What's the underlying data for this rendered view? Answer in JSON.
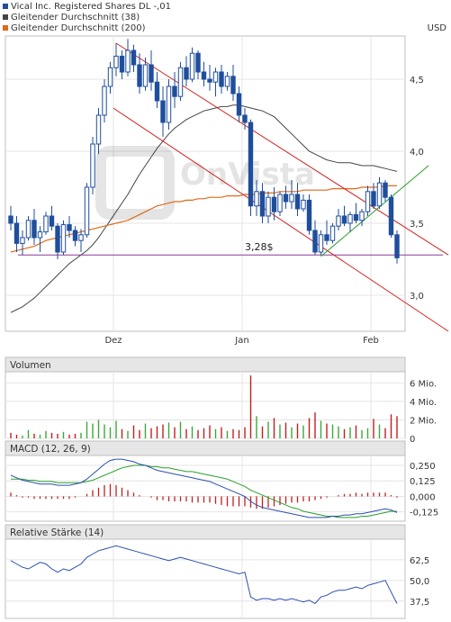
{
  "chart_data": [
    {
      "panel": "price",
      "type": "candlestick",
      "legend": [
        {
          "label": "Vical Inc. Registered Shares DL -,01",
          "color": "#1f4e9c"
        },
        {
          "label": "Gleitender Durchschnitt (38)",
          "color": "#444444"
        },
        {
          "label": "Gleitender Durchschnitt (200)",
          "color": "#e06a1a"
        }
      ],
      "currency_label": "USD",
      "x_ticks": [
        {
          "label": "Dez",
          "i": 18
        },
        {
          "label": "Jan",
          "i": 40
        },
        {
          "label": "Feb",
          "i": 62
        }
      ],
      "y_ticks": [
        "4,5",
        "4,0",
        "3,5",
        "3,0"
      ],
      "ylim": [
        2.75,
        4.8
      ],
      "horizontal_level": {
        "value": 3.28,
        "label": "3,28$"
      },
      "candles": [
        [
          3.55,
          3.62,
          3.45,
          3.5
        ],
        [
          3.5,
          3.55,
          3.3,
          3.36
        ],
        [
          3.36,
          3.45,
          3.28,
          3.4
        ],
        [
          3.4,
          3.55,
          3.38,
          3.52
        ],
        [
          3.52,
          3.6,
          3.35,
          3.4
        ],
        [
          3.4,
          3.48,
          3.3,
          3.44
        ],
        [
          3.44,
          3.58,
          3.42,
          3.55
        ],
        [
          3.55,
          3.62,
          3.45,
          3.48
        ],
        [
          3.48,
          3.5,
          3.25,
          3.3
        ],
        [
          3.3,
          3.52,
          3.28,
          3.49
        ],
        [
          3.49,
          3.55,
          3.4,
          3.45
        ],
        [
          3.45,
          3.48,
          3.34,
          3.38
        ],
        [
          3.38,
          3.46,
          3.3,
          3.42
        ],
        [
          3.42,
          3.78,
          3.4,
          3.75
        ],
        [
          3.75,
          4.1,
          3.7,
          4.05
        ],
        [
          4.05,
          4.3,
          3.98,
          4.25
        ],
        [
          4.25,
          4.5,
          4.2,
          4.45
        ],
        [
          4.45,
          4.62,
          4.4,
          4.58
        ],
        [
          4.58,
          4.75,
          4.52,
          4.66
        ],
        [
          4.66,
          4.7,
          4.5,
          4.55
        ],
        [
          4.55,
          4.78,
          4.52,
          4.7
        ],
        [
          4.7,
          4.74,
          4.55,
          4.6
        ],
        [
          4.6,
          4.68,
          4.4,
          4.45
        ],
        [
          4.45,
          4.65,
          4.42,
          4.6
        ],
        [
          4.6,
          4.7,
          4.42,
          4.48
        ],
        [
          4.48,
          4.55,
          4.3,
          4.35
        ],
        [
          4.35,
          4.45,
          4.1,
          4.2
        ],
        [
          4.2,
          4.5,
          4.15,
          4.45
        ],
        [
          4.45,
          4.55,
          4.3,
          4.38
        ],
        [
          4.38,
          4.62,
          4.35,
          4.58
        ],
        [
          4.58,
          4.66,
          4.45,
          4.5
        ],
        [
          4.5,
          4.72,
          4.48,
          4.68
        ],
        [
          4.68,
          4.7,
          4.5,
          4.55
        ],
        [
          4.55,
          4.62,
          4.45,
          4.5
        ],
        [
          4.5,
          4.6,
          4.42,
          4.48
        ],
        [
          4.48,
          4.58,
          4.38,
          4.55
        ],
        [
          4.55,
          4.6,
          4.4,
          4.45
        ],
        [
          4.45,
          4.55,
          4.42,
          4.52
        ],
        [
          4.52,
          4.6,
          4.35,
          4.4
        ],
        [
          4.4,
          4.45,
          4.2,
          4.25
        ],
        [
          4.25,
          4.3,
          4.15,
          4.2
        ],
        [
          4.2,
          4.22,
          3.55,
          3.62
        ],
        [
          3.62,
          3.8,
          3.55,
          3.72
        ],
        [
          3.72,
          3.78,
          3.5,
          3.55
        ],
        [
          3.55,
          3.72,
          3.5,
          3.68
        ],
        [
          3.68,
          3.75,
          3.52,
          3.58
        ],
        [
          3.58,
          3.72,
          3.55,
          3.7
        ],
        [
          3.7,
          3.76,
          3.6,
          3.65
        ],
        [
          3.65,
          3.8,
          3.6,
          3.7
        ],
        [
          3.7,
          3.78,
          3.55,
          3.6
        ],
        [
          3.6,
          3.7,
          3.58,
          3.66
        ],
        [
          3.66,
          3.7,
          3.42,
          3.45
        ],
        [
          3.45,
          3.52,
          3.28,
          3.3
        ],
        [
          3.3,
          3.45,
          3.28,
          3.42
        ],
        [
          3.42,
          3.52,
          3.35,
          3.38
        ],
        [
          3.38,
          3.5,
          3.36,
          3.48
        ],
        [
          3.48,
          3.6,
          3.45,
          3.55
        ],
        [
          3.55,
          3.62,
          3.48,
          3.5
        ],
        [
          3.5,
          3.58,
          3.44,
          3.56
        ],
        [
          3.56,
          3.64,
          3.5,
          3.52
        ],
        [
          3.52,
          3.6,
          3.48,
          3.58
        ],
        [
          3.58,
          3.76,
          3.55,
          3.72
        ],
        [
          3.72,
          3.78,
          3.6,
          3.62
        ],
        [
          3.62,
          3.82,
          3.6,
          3.78
        ],
        [
          3.78,
          3.8,
          3.65,
          3.68
        ],
        [
          3.68,
          3.7,
          3.4,
          3.42
        ],
        [
          3.42,
          3.45,
          3.22,
          3.26
        ]
      ],
      "ma38": [
        2.88,
        2.9,
        2.92,
        2.95,
        2.98,
        3.02,
        3.06,
        3.1,
        3.14,
        3.18,
        3.22,
        3.25,
        3.28,
        3.31,
        3.35,
        3.4,
        3.46,
        3.52,
        3.58,
        3.64,
        3.7,
        3.77,
        3.84,
        3.9,
        3.96,
        4.02,
        4.07,
        4.12,
        4.16,
        4.19,
        4.22,
        4.24,
        4.26,
        4.28,
        4.29,
        4.3,
        4.31,
        4.31,
        4.32,
        4.32,
        4.31,
        4.3,
        4.29,
        4.28,
        4.26,
        4.24,
        4.2,
        4.16,
        4.12,
        4.08,
        4.04,
        4.0,
        3.98,
        3.96,
        3.94,
        3.93,
        3.92,
        3.92,
        3.92,
        3.91,
        3.9,
        3.9,
        3.9,
        3.89,
        3.88,
        3.87,
        3.86
      ],
      "ma200": [
        3.3,
        3.31,
        3.32,
        3.33,
        3.34,
        3.36,
        3.38,
        3.39,
        3.4,
        3.41,
        3.42,
        3.43,
        3.44,
        3.45,
        3.46,
        3.47,
        3.48,
        3.49,
        3.5,
        3.51,
        3.52,
        3.54,
        3.56,
        3.58,
        3.6,
        3.62,
        3.63,
        3.64,
        3.65,
        3.65,
        3.66,
        3.66,
        3.67,
        3.67,
        3.68,
        3.68,
        3.68,
        3.69,
        3.69,
        3.69,
        3.7,
        3.7,
        3.7,
        3.71,
        3.71,
        3.71,
        3.72,
        3.72,
        3.72,
        3.72,
        3.73,
        3.73,
        3.73,
        3.73,
        3.73,
        3.74,
        3.74,
        3.74,
        3.74,
        3.74,
        3.75,
        3.75,
        3.75,
        3.75,
        3.76,
        3.76,
        3.76
      ]
    },
    {
      "panel": "volume",
      "type": "bar",
      "title": "Volumen",
      "y_ticks": [
        "6 Mio.",
        "4 Mio.",
        "2 Mio.",
        "0"
      ],
      "ylim": [
        0,
        7.2
      ],
      "values": [
        0.6,
        0.4,
        0.3,
        0.9,
        0.5,
        0.4,
        0.8,
        0.6,
        0.5,
        0.7,
        0.4,
        0.5,
        0.6,
        1.8,
        1.6,
        2.0,
        1.5,
        1.2,
        1.9,
        1.0,
        0.8,
        1.4,
        0.9,
        1.6,
        1.1,
        1.3,
        1.5,
        1.7,
        1.2,
        1.8,
        1.0,
        1.3,
        0.9,
        1.1,
        1.4,
        1.0,
        1.2,
        0.8,
        1.0,
        0.9,
        1.2,
        6.8,
        2.4,
        1.3,
        1.8,
        2.2,
        1.5,
        1.7,
        1.2,
        1.6,
        1.4,
        2.2,
        2.8,
        1.9,
        1.6,
        1.5,
        1.3,
        1.0,
        1.2,
        1.4,
        0.9,
        1.1,
        2.1,
        1.5,
        1.1,
        2.6,
        2.4
      ]
    },
    {
      "panel": "macd",
      "type": "line",
      "title": "MACD (12, 26, 9)",
      "y_ticks": [
        "0,250",
        "0,125",
        "0,000",
        "-0,125"
      ],
      "ylim": [
        -0.2,
        0.33
      ],
      "macd": [
        0.17,
        0.15,
        0.13,
        0.12,
        0.11,
        0.1,
        0.1,
        0.1,
        0.09,
        0.09,
        0.09,
        0.1,
        0.11,
        0.14,
        0.18,
        0.22,
        0.26,
        0.29,
        0.3,
        0.3,
        0.29,
        0.28,
        0.26,
        0.25,
        0.23,
        0.21,
        0.2,
        0.19,
        0.18,
        0.17,
        0.16,
        0.15,
        0.14,
        0.13,
        0.12,
        0.1,
        0.08,
        0.06,
        0.04,
        0.02,
        0.0,
        -0.04,
        -0.07,
        -0.09,
        -0.1,
        -0.11,
        -0.12,
        -0.13,
        -0.14,
        -0.15,
        -0.16,
        -0.17,
        -0.17,
        -0.17,
        -0.17,
        -0.16,
        -0.16,
        -0.15,
        -0.15,
        -0.14,
        -0.14,
        -0.13,
        -0.12,
        -0.11,
        -0.1,
        -0.11,
        -0.13
      ],
      "signal": [
        0.14,
        0.14,
        0.14,
        0.13,
        0.13,
        0.12,
        0.12,
        0.12,
        0.11,
        0.11,
        0.11,
        0.11,
        0.11,
        0.12,
        0.13,
        0.15,
        0.17,
        0.19,
        0.21,
        0.23,
        0.24,
        0.25,
        0.25,
        0.25,
        0.24,
        0.24,
        0.23,
        0.23,
        0.22,
        0.21,
        0.2,
        0.2,
        0.19,
        0.18,
        0.17,
        0.16,
        0.15,
        0.14,
        0.12,
        0.1,
        0.08,
        0.05,
        0.03,
        0.01,
        -0.01,
        -0.03,
        -0.05,
        -0.07,
        -0.09,
        -0.1,
        -0.12,
        -0.13,
        -0.14,
        -0.15,
        -0.16,
        -0.16,
        -0.17,
        -0.17,
        -0.17,
        -0.17,
        -0.16,
        -0.16,
        -0.15,
        -0.14,
        -0.13,
        -0.12,
        -0.12
      ],
      "histogram": [
        0.03,
        0.01,
        -0.01,
        -0.01,
        -0.02,
        -0.02,
        -0.02,
        -0.02,
        -0.02,
        -0.02,
        -0.02,
        -0.01,
        0.0,
        0.02,
        0.05,
        0.07,
        0.09,
        0.1,
        0.09,
        0.07,
        0.05,
        0.03,
        0.01,
        0.0,
        -0.01,
        -0.03,
        -0.03,
        -0.04,
        -0.04,
        -0.04,
        -0.04,
        -0.05,
        -0.05,
        -0.05,
        -0.05,
        -0.06,
        -0.07,
        -0.08,
        -0.08,
        -0.08,
        -0.08,
        -0.09,
        -0.1,
        -0.1,
        -0.09,
        -0.08,
        -0.07,
        -0.06,
        -0.05,
        -0.05,
        -0.04,
        -0.04,
        -0.03,
        -0.02,
        -0.01,
        0.0,
        0.01,
        0.02,
        0.02,
        0.03,
        0.02,
        0.03,
        0.03,
        0.03,
        0.03,
        0.01,
        -0.01
      ]
    },
    {
      "panel": "rsi",
      "type": "line",
      "title": "Relative Stärke (14)",
      "y_ticks": [
        "62,5",
        "50,0",
        "37,5"
      ],
      "ylim": [
        27,
        75
      ],
      "values": [
        62,
        60,
        58,
        57,
        59,
        61,
        60,
        57,
        55,
        57,
        56,
        58,
        60,
        64,
        66,
        68,
        69,
        70,
        71,
        70,
        69,
        68,
        67,
        66,
        65,
        64,
        63,
        62,
        63,
        64,
        63,
        62,
        61,
        60,
        59,
        58,
        57,
        56,
        55,
        54,
        55,
        40,
        38,
        39,
        39,
        38,
        39,
        38,
        39,
        38,
        37,
        38,
        36,
        40,
        41,
        43,
        44,
        44,
        45,
        46,
        45,
        47,
        48,
        49,
        50,
        43,
        36
      ]
    }
  ]
}
